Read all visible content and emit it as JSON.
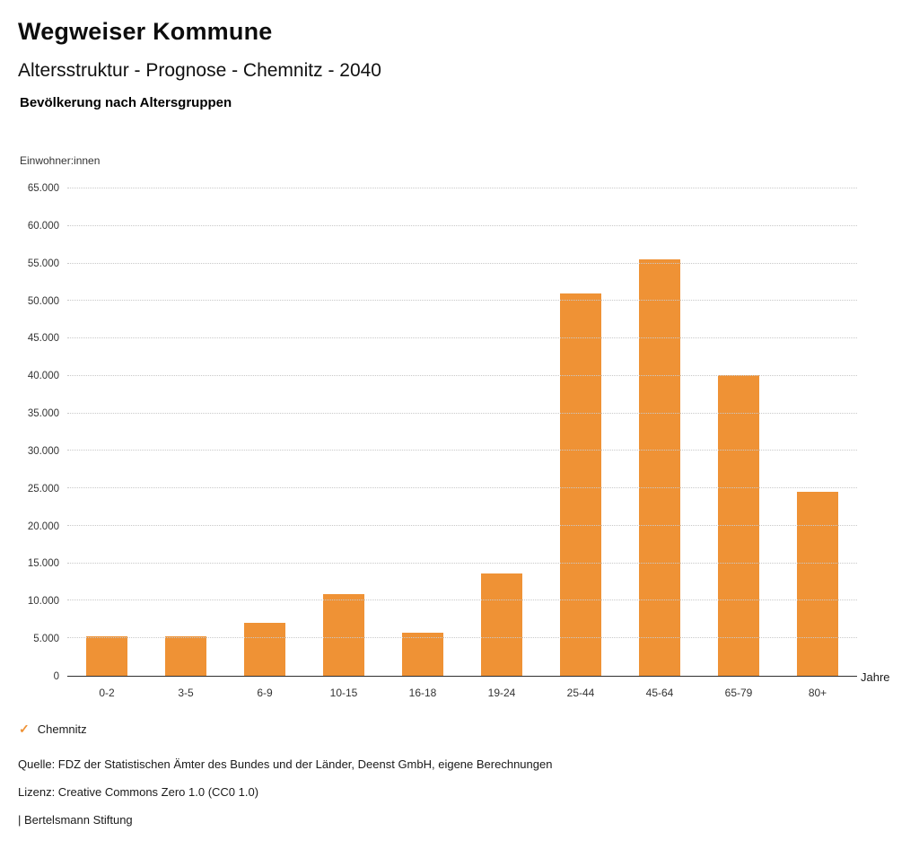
{
  "header": {
    "title": "Wegweiser Kommune",
    "subtitle": "Altersstruktur - Prognose - Chemnitz - 2040",
    "chart_heading": "Bevölkerung nach Altersgruppen"
  },
  "chart_data": {
    "type": "bar",
    "title": "Bevölkerung nach Altersgruppen",
    "categories": [
      "0-2",
      "3-5",
      "6-9",
      "10-15",
      "16-18",
      "19-24",
      "25-44",
      "45-64",
      "65-79",
      "80+"
    ],
    "values": [
      5300,
      5300,
      7100,
      10900,
      5700,
      13700,
      51000,
      55600,
      40100,
      24500
    ],
    "xlabel": "Jahre",
    "ylabel": "Einwohner:innen",
    "ylim": [
      0,
      65000
    ],
    "ytick_step": 5000,
    "ytick_labels": [
      "0",
      "5.000",
      "10.000",
      "15.000",
      "20.000",
      "25.000",
      "30.000",
      "35.000",
      "40.000",
      "45.000",
      "50.000",
      "55.000",
      "60.000",
      "65.000"
    ],
    "bar_color": "#EF9235",
    "grid": true,
    "legend_position": "bottom-left",
    "legend": [
      {
        "label": "Chemnitz",
        "color": "#EF9235"
      }
    ]
  },
  "legend": {
    "check_icon": "✓",
    "label": "Chemnitz"
  },
  "footer": {
    "source": "Quelle: FDZ der Statistischen Ämter des Bundes und der Länder, Deenst GmbH, eigene Berechnungen",
    "license": "Lizenz: Creative Commons Zero 1.0 (CC0 1.0)",
    "attribution": "| Bertelsmann Stiftung"
  }
}
